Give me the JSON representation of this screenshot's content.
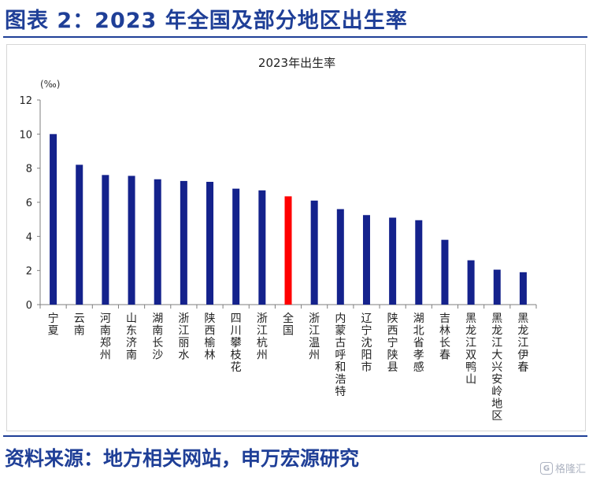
{
  "header": {
    "title": "图表 2：2023 年全国及部分地区出生率"
  },
  "footer": {
    "source": "资料来源：地方相关网站，申万宏源研究"
  },
  "watermark": {
    "icon": "gelonghui-logo-icon",
    "text": "格隆汇"
  },
  "colors": {
    "brand": "#1f3f97",
    "bar": "#14228c",
    "highlight": "#ff0000",
    "axis": "#7f7f7f"
  },
  "chart_data": {
    "type": "bar",
    "title": "2023年出生率",
    "unit": "(‰)",
    "xlabel": "",
    "ylabel": "",
    "ylim": [
      0,
      12
    ],
    "yticks": [
      0,
      2,
      4,
      6,
      8,
      10,
      12
    ],
    "grid": false,
    "legend": false,
    "categories": [
      "宁夏",
      "云南",
      "河南郑州",
      "山东济南",
      "湖南长沙",
      "浙江丽水",
      "陕西榆林",
      "四川攀枝花",
      "浙江杭州",
      "全国",
      "浙江温州",
      "内蒙古呼和浩特",
      "辽宁沈阳市",
      "陕西宁陕县",
      "湖北省孝感",
      "吉林长春",
      "黑龙江双鸭山",
      "黑龙江大兴安岭地区",
      "黑龙江伊春"
    ],
    "values": [
      10.0,
      8.2,
      7.6,
      7.55,
      7.35,
      7.25,
      7.2,
      6.8,
      6.7,
      6.35,
      6.1,
      5.6,
      5.25,
      5.1,
      4.95,
      3.8,
      2.6,
      2.05,
      1.9
    ],
    "highlight_category": "全国"
  }
}
